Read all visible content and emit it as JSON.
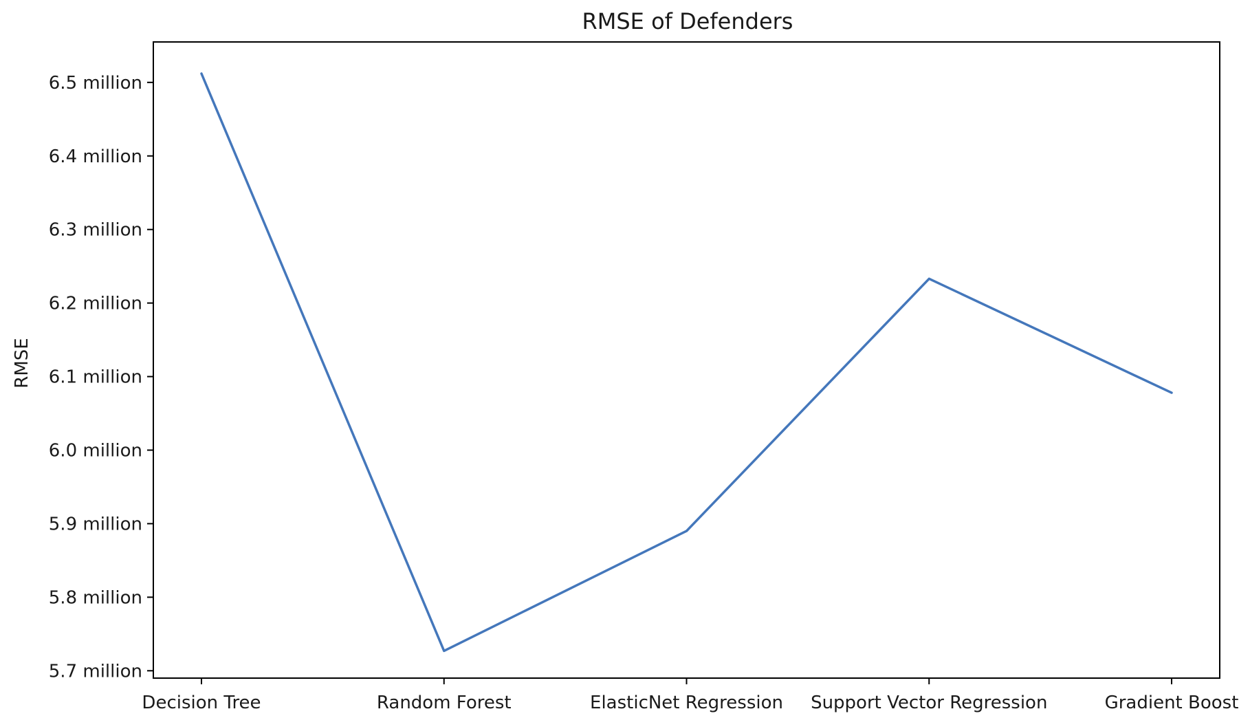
{
  "chart_data": {
    "type": "line",
    "title": "RMSE of Defenders",
    "xlabel": "",
    "ylabel": "RMSE",
    "categories": [
      "Decision Tree",
      "Random Forest",
      "ElasticNet Regression",
      "Support Vector Regression",
      "Gradient Boost"
    ],
    "series": [
      {
        "values": [
          6512000,
          5727000,
          5890000,
          6233000,
          6078000
        ],
        "color": "#4477bb"
      }
    ],
    "yticks": [
      5700000,
      5800000,
      5900000,
      6000000,
      6100000,
      6200000,
      6300000,
      6400000,
      6500000
    ],
    "ytick_labels": [
      "5.7 million",
      "5.8 million",
      "5.9 million",
      "6.0 million",
      "6.1 million",
      "6.2 million",
      "6.3 million",
      "6.4 million",
      "6.5 million"
    ],
    "ylim": [
      5690000,
      6555000
    ],
    "grid": false,
    "legend": false
  }
}
